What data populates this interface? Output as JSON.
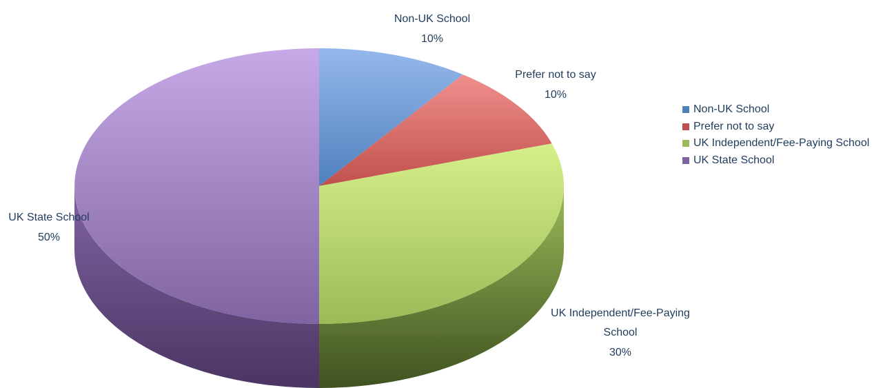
{
  "chart_data": {
    "type": "pie",
    "style": "3d",
    "title": "",
    "slices": [
      {
        "name": "Non-UK School",
        "value": 10,
        "label_name": "Non-UK School",
        "label_value": "10%",
        "color": "#4f81bd",
        "color_light": "#95b9ec",
        "color_side": "#2c4f7c"
      },
      {
        "name": "Prefer not to say",
        "value": 10,
        "label_name": "Prefer not to say",
        "label_value": "10%",
        "color": "#c0504d",
        "color_light": "#f08f8c",
        "color_side": "#7a2a28"
      },
      {
        "name": "UK Independent/Fee-Paying School",
        "value": 30,
        "label_name": "UK Independent/Fee-Paying School",
        "label_value": "30%",
        "color": "#9bbb59",
        "color_light": "#d6f08a",
        "color_side": "#3e5220"
      },
      {
        "name": "UK State School",
        "value": 50,
        "label_name": "UK State School",
        "label_value": "50%",
        "color": "#8064a2",
        "color_light": "#c6a9e6",
        "color_side": "#4b3563"
      }
    ],
    "legend_position": "right"
  },
  "legend": {
    "items": [
      {
        "label": "Non-UK School",
        "color": "#4f81bd"
      },
      {
        "label": "Prefer not to say",
        "color": "#c0504d"
      },
      {
        "label": "UK Independent/Fee-Paying School",
        "color": "#9bbb59"
      },
      {
        "label": "UK State School",
        "color": "#8064a2"
      }
    ]
  }
}
